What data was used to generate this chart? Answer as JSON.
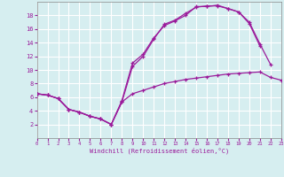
{
  "xlabel": "Windchill (Refroidissement éolien,°C)",
  "bg_color": "#d6eef0",
  "grid_color": "#ffffff",
  "line_color": "#9b1b9b",
  "line1_x": [
    0,
    1,
    2,
    3,
    4,
    5,
    6,
    7,
    8,
    9,
    10,
    11,
    12,
    13,
    14,
    15,
    16,
    17,
    18,
    19,
    20,
    21,
    22,
    23
  ],
  "line1_y": [
    6.5,
    6.3,
    5.8,
    4.2,
    3.8,
    3.2,
    2.8,
    2.0,
    5.3,
    6.5,
    7.0,
    7.5,
    8.0,
    8.3,
    8.6,
    8.8,
    9.0,
    9.2,
    9.4,
    9.5,
    9.6,
    9.7,
    8.9,
    8.5
  ],
  "line2_x": [
    0,
    1,
    2,
    3,
    4,
    5,
    6,
    7,
    8,
    9,
    10,
    11,
    12,
    13,
    14,
    15,
    16,
    17,
    18,
    19,
    20,
    21,
    22
  ],
  "line2_y": [
    6.5,
    6.3,
    5.8,
    4.2,
    3.8,
    3.2,
    2.8,
    2.0,
    5.5,
    11.0,
    12.3,
    14.7,
    16.5,
    17.2,
    18.0,
    19.3,
    19.3,
    19.5,
    19.0,
    18.5,
    17.0,
    13.8,
    10.8
  ],
  "line3_x": [
    0,
    1,
    2,
    3,
    4,
    5,
    6,
    7,
    8,
    9,
    10,
    11,
    12,
    13,
    14,
    15,
    16,
    17,
    18,
    19,
    20,
    21
  ],
  "line3_y": [
    6.5,
    6.3,
    5.8,
    4.2,
    3.8,
    3.2,
    2.8,
    2.0,
    5.3,
    10.5,
    12.0,
    14.5,
    16.7,
    17.3,
    18.3,
    19.2,
    19.4,
    19.4,
    19.0,
    18.5,
    16.8,
    13.5
  ],
  "ylim": [
    0,
    20
  ],
  "xlim": [
    0,
    23
  ],
  "yticks": [
    2,
    4,
    6,
    8,
    10,
    12,
    14,
    16,
    18
  ],
  "xticks": [
    0,
    1,
    2,
    3,
    4,
    5,
    6,
    7,
    8,
    9,
    10,
    11,
    12,
    13,
    14,
    15,
    16,
    17,
    18,
    19,
    20,
    21,
    22,
    23
  ]
}
